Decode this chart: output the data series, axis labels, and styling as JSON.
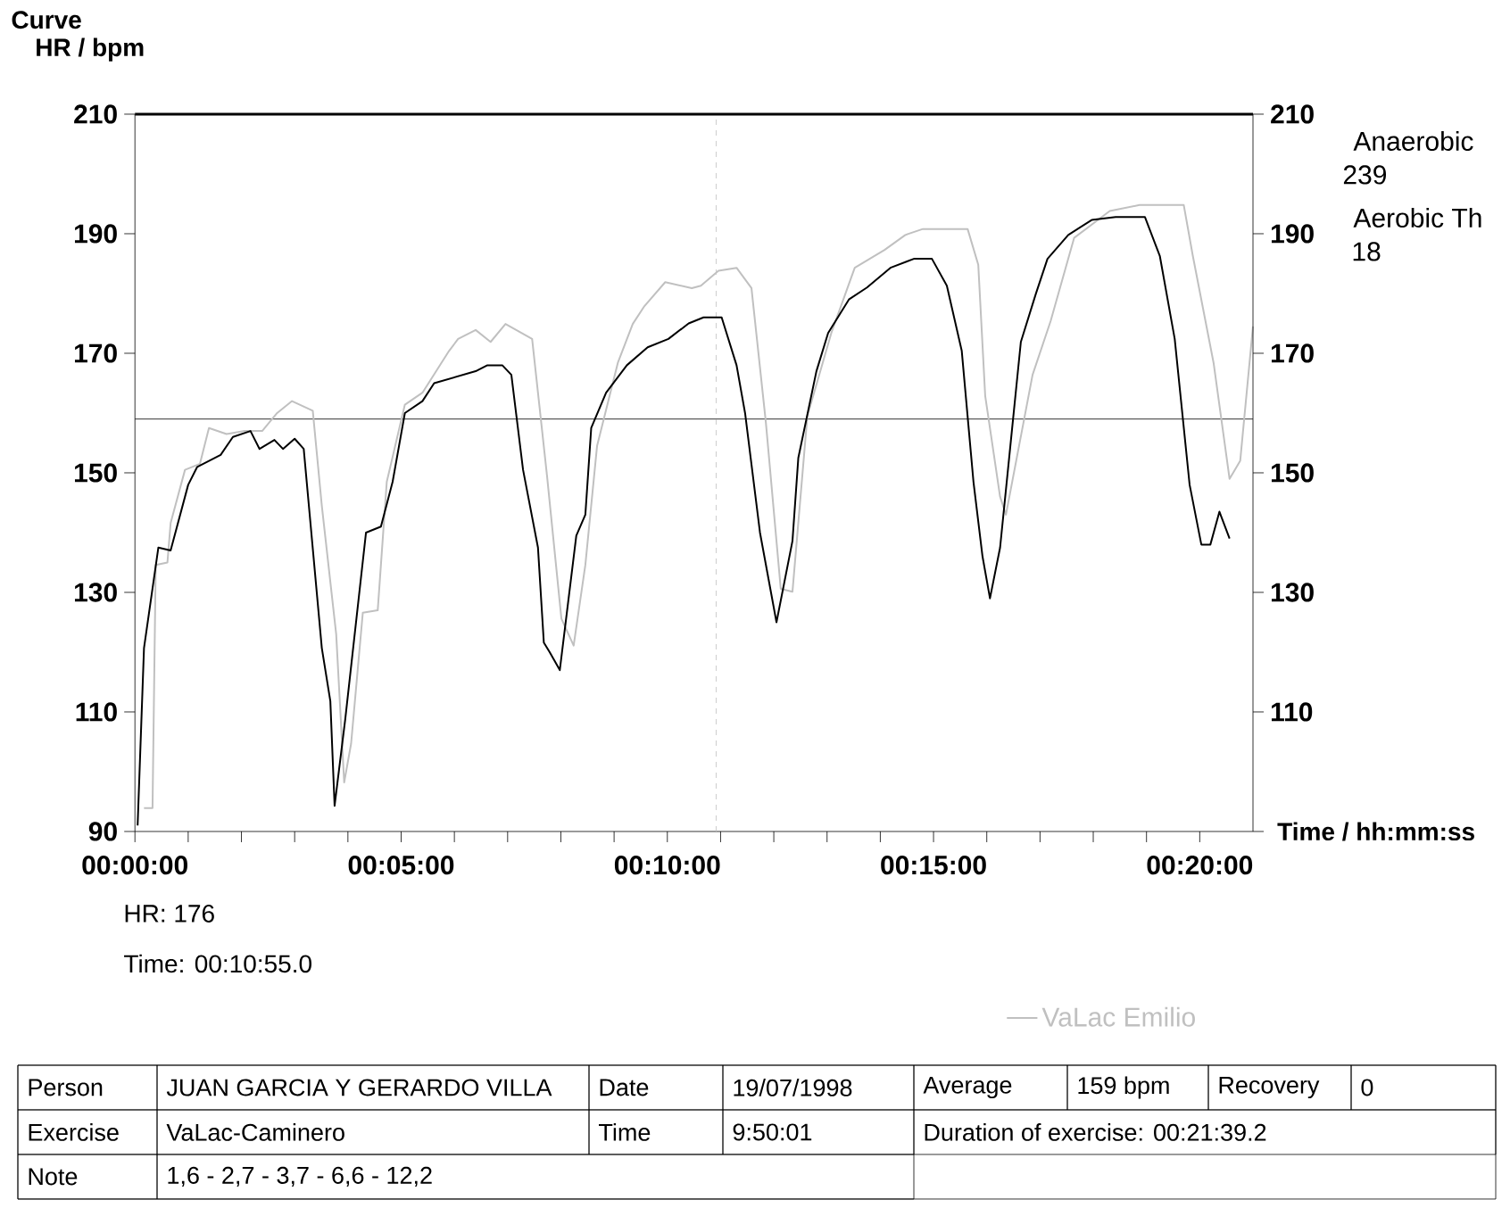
{
  "chart_data": {
    "type": "line",
    "title": "Curve",
    "ylabel": "HR / bpm",
    "xlabel": "Time / hh:mm:ss",
    "xlim": [
      0,
      21
    ],
    "ylim": [
      90,
      210
    ],
    "y2lim": [
      90,
      210
    ],
    "xticks": [
      {
        "value": 0,
        "label": "00:00:00"
      },
      {
        "value": 1,
        "label": null
      },
      {
        "value": 2,
        "label": null
      },
      {
        "value": 3,
        "label": null
      },
      {
        "value": 4,
        "label": null
      },
      {
        "value": 5,
        "label": "00:05:00"
      },
      {
        "value": 6,
        "label": null
      },
      {
        "value": 7,
        "label": null
      },
      {
        "value": 8,
        "label": null
      },
      {
        "value": 9,
        "label": null
      },
      {
        "value": 10,
        "label": "00:10:00"
      },
      {
        "value": 11,
        "label": null
      },
      {
        "value": 12,
        "label": null
      },
      {
        "value": 13,
        "label": null
      },
      {
        "value": 14,
        "label": null
      },
      {
        "value": 15,
        "label": "00:15:00"
      },
      {
        "value": 16,
        "label": null
      },
      {
        "value": 17,
        "label": null
      },
      {
        "value": 18,
        "label": null
      },
      {
        "value": 19,
        "label": null
      },
      {
        "value": 20,
        "label": "00:20:00"
      }
    ],
    "yticks": [
      90,
      110,
      130,
      150,
      170,
      190,
      210
    ],
    "y2ticks": [
      110,
      130,
      150,
      170,
      190,
      210
    ],
    "grid": false,
    "legend": "bottom",
    "marker": "none",
    "line_style": "solid",
    "series": [
      {
        "color": "#000000",
        "x": [
          0.05,
          0.17,
          0.44,
          0.67,
          1.0,
          1.17,
          1.61,
          1.84,
          2.17,
          2.34,
          2.62,
          2.78,
          3.0,
          3.17,
          3.51,
          3.67,
          3.75,
          3.95,
          4.34,
          4.62,
          4.84,
          5.07,
          5.4,
          5.62,
          6.01,
          6.4,
          6.62,
          6.9,
          7.07,
          7.29,
          7.57,
          7.68,
          7.79,
          7.98,
          8.29,
          8.46,
          8.57,
          8.85,
          9.24,
          9.63,
          10.02,
          10.4,
          10.68,
          11.02,
          11.3,
          11.46,
          11.74,
          12.05,
          12.35,
          12.46,
          12.8,
          13.02,
          13.41,
          13.75,
          14.19,
          14.63,
          14.97,
          15.25,
          15.53,
          15.75,
          15.92,
          16.06,
          16.25,
          16.64,
          16.92,
          17.14,
          17.53,
          17.97,
          18.42,
          18.97,
          19.25,
          19.53,
          19.81,
          20.03,
          20.2,
          20.37,
          20.56
        ],
        "values": [
          91,
          120.7,
          137.5,
          137,
          148,
          151,
          153,
          156,
          157,
          154,
          155.5,
          154,
          155.7,
          154,
          120.7,
          111.8,
          94.3,
          108.8,
          140,
          141,
          148.5,
          160,
          162,
          165,
          166,
          167,
          168,
          168,
          166.4,
          150.5,
          137.5,
          121.6,
          120,
          117,
          139.5,
          143,
          157.5,
          163.4,
          168,
          171,
          172.4,
          175,
          176,
          176,
          168,
          160,
          140,
          125,
          138.6,
          152.5,
          167,
          173.4,
          179,
          181,
          184.3,
          185.8,
          185.8,
          181.3,
          170.4,
          148.5,
          136,
          129,
          137.5,
          171.9,
          179.9,
          185.8,
          189.8,
          192.3,
          192.8,
          192.8,
          186.3,
          172.4,
          148,
          138,
          138,
          143.5,
          139
        ]
      },
      {
        "name": "VaLac Emilio",
        "color": "#c0c0c0",
        "x": [
          0.17,
          0.33,
          0.39,
          0.61,
          0.67,
          0.94,
          1.22,
          1.39,
          1.72,
          2.06,
          2.39,
          2.67,
          2.95,
          3.34,
          3.51,
          3.78,
          3.93,
          4.06,
          4.28,
          4.56,
          4.73,
          5.07,
          5.4,
          5.9,
          6.07,
          6.4,
          6.68,
          6.96,
          7.46,
          7.74,
          8.01,
          8.24,
          8.46,
          8.68,
          9.07,
          9.35,
          9.57,
          9.96,
          10.46,
          10.63,
          10.96,
          11.3,
          11.58,
          11.85,
          12.13,
          12.35,
          12.63,
          13.08,
          13.52,
          14.08,
          14.47,
          14.8,
          15.64,
          15.84,
          15.97,
          16.25,
          16.36,
          16.86,
          17.2,
          17.64,
          18.31,
          18.87,
          19.7,
          19.87,
          20.26,
          20.56,
          20.76,
          21.0
        ],
        "values": [
          93.9,
          93.9,
          134.6,
          135,
          141.6,
          150.5,
          151.5,
          157.5,
          156.5,
          157,
          157,
          160,
          162,
          160.4,
          144.5,
          123,
          98.2,
          104.7,
          126.6,
          127,
          148.5,
          161.4,
          163.4,
          170.4,
          172.4,
          173.9,
          171.9,
          174.9,
          172.4,
          149.5,
          125.6,
          121.1,
          134.6,
          154.5,
          168.4,
          174.9,
          177.9,
          181.9,
          180.9,
          181.3,
          183.8,
          184.3,
          180.9,
          158.5,
          130.6,
          130.1,
          159.5,
          173.4,
          184.3,
          187.3,
          189.8,
          190.8,
          190.8,
          184.8,
          162.9,
          146,
          143,
          166.4,
          175.4,
          189.3,
          193.8,
          194.8,
          194.8,
          186.3,
          168.4,
          149,
          152,
          174.5
        ]
      }
    ],
    "ref_lines": [
      {
        "axis": "y",
        "value": 159,
        "color": "#000000",
        "line_style": "solid"
      },
      {
        "axis": "x",
        "value": 10.917,
        "color": "#c0c0c0",
        "line_style": "dashed"
      }
    ],
    "annotations": [
      "HR: 176",
      "Time: 00:10:55.0",
      "Anaerobic",
      "239",
      "Aerobic Th",
      "18",
      "Person",
      "JUAN GARCIA Y GERARDO VILLA",
      "Date",
      "19/07/1998",
      "Average",
      "159 bpm",
      "Recovery",
      "0",
      "Exercise",
      "VaLac-Caminero",
      "Time",
      "9:50:01",
      "Duration of exercise: 00:21:39.2",
      "Note",
      "1,6 - 2,7 - 3,7 - 6,6 - 12,2"
    ]
  }
}
